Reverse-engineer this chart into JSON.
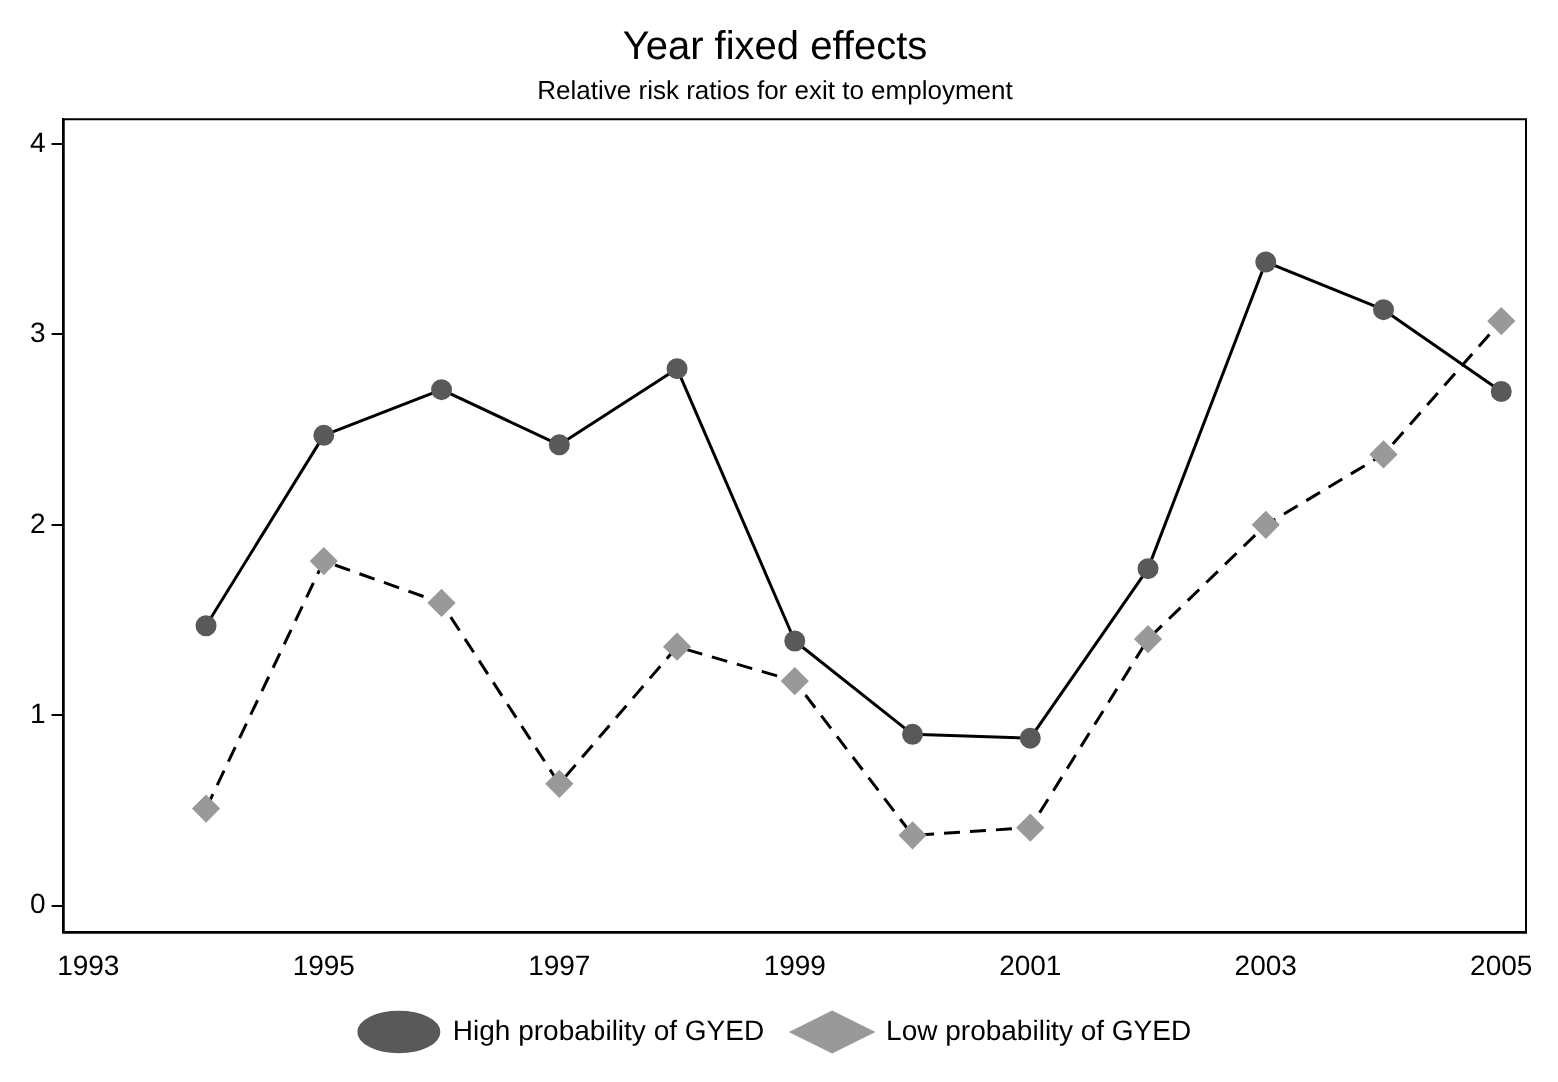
{
  "chart_data": {
    "type": "line",
    "title": "Year fixed effects",
    "subtitle": "Relative risk ratios for exit to employment",
    "x": [
      1994,
      1995,
      1996,
      1997,
      1998,
      1999,
      2000,
      2001,
      2002,
      2003,
      2004,
      2005
    ],
    "series": [
      {
        "name": "High probability of GYED",
        "color": "#595959",
        "marker": "circle",
        "line_style": "solid",
        "values": [
          1.47,
          2.47,
          2.71,
          2.42,
          2.82,
          1.39,
          0.9,
          0.88,
          1.77,
          3.38,
          3.13,
          2.7
        ]
      },
      {
        "name": "Low probability of GYED",
        "color": "#999999",
        "marker": "diamond",
        "line_style": "dashed",
        "values": [
          0.51,
          1.81,
          1.59,
          0.64,
          1.36,
          1.18,
          0.37,
          0.41,
          1.4,
          2.0,
          2.37,
          3.07
        ]
      }
    ],
    "xlim": [
      1992.79,
      2005.21
    ],
    "xticks": [
      1993,
      1995,
      1997,
      1999,
      2001,
      2003,
      2005
    ],
    "ylim": [
      -0.14,
      4.13
    ],
    "yticks": [
      0,
      1,
      2,
      3,
      4
    ],
    "grid": false,
    "legend": "bottom"
  }
}
